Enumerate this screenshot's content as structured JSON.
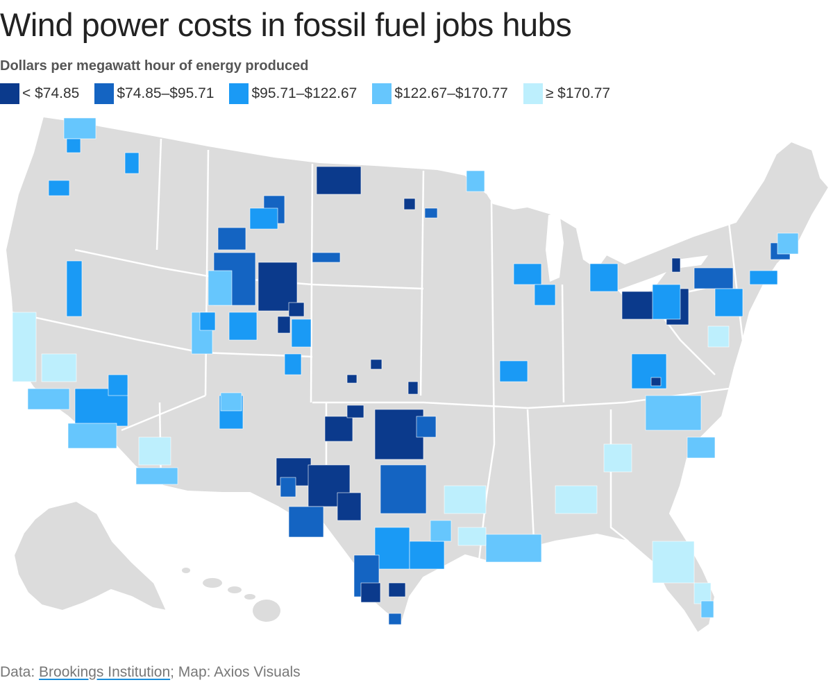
{
  "header": {
    "title": "Wind power costs in fossil fuel jobs hubs",
    "subtitle": "Dollars per megawatt hour of energy produced"
  },
  "legend": [
    {
      "label": "< $74.85",
      "color": "#0b3a8c"
    },
    {
      "label": "$74.85–$95.71",
      "color": "#1464c2"
    },
    {
      "label": "$95.71–$122.67",
      "color": "#1a9af5"
    },
    {
      "label": "$122.67–$170.77",
      "color": "#66c6fd"
    },
    {
      "label": "≥ $170.77",
      "color": "#bdeffd"
    }
  ],
  "map": {
    "base_color": "#dcdcdc",
    "border_color": "#ffffff",
    "regions": [
      {
        "name": "Wyoming",
        "bin": 0
      },
      {
        "name": "North Dakota",
        "bin": 0
      },
      {
        "name": "Western Texas",
        "bin": 0
      },
      {
        "name": "Oklahoma",
        "bin": 0
      },
      {
        "name": "Southern Texas",
        "bin": 0
      },
      {
        "name": "Pennsylvania",
        "bin": 0
      },
      {
        "name": "Kansas",
        "bin": 0
      },
      {
        "name": "Colorado",
        "bin": 2
      },
      {
        "name": "Montana",
        "bin": 1
      },
      {
        "name": "Central Texas",
        "bin": 1
      },
      {
        "name": "Texas Gulf Coast",
        "bin": 2
      },
      {
        "name": "Southern California",
        "bin": 2
      },
      {
        "name": "Washington",
        "bin": 2
      },
      {
        "name": "Northeast",
        "bin": 2
      },
      {
        "name": "Louisiana",
        "bin": 3
      },
      {
        "name": "Utah",
        "bin": 3
      },
      {
        "name": "Northern California",
        "bin": 4
      },
      {
        "name": "Arizona",
        "bin": 4
      },
      {
        "name": "Florida",
        "bin": 4
      },
      {
        "name": "Carolinas",
        "bin": 3
      }
    ]
  },
  "source": {
    "prefix": "Data: ",
    "link": "Brookings Institution",
    "suffix": "; Map: Axios Visuals"
  }
}
